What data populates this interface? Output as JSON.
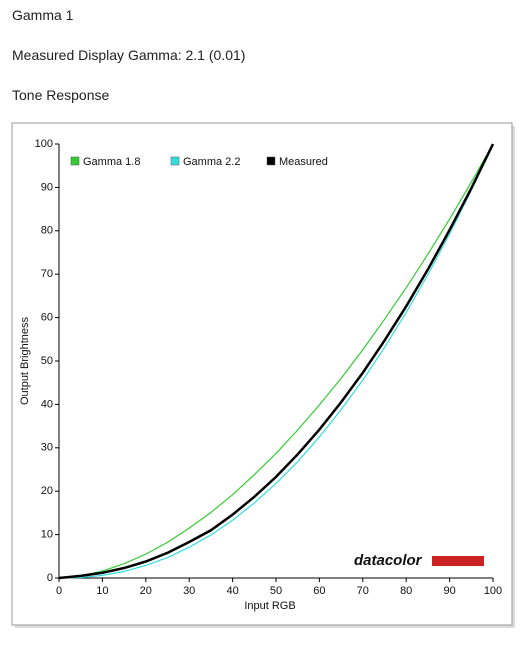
{
  "heading": "Gamma 1",
  "subheading": "Measured Display Gamma: 2.1 (0.01)",
  "section": "Tone Response",
  "logo": "datacolor",
  "chart_data": {
    "type": "line",
    "xlabel": "Input RGB",
    "ylabel": "Output Brightness",
    "x": [
      0,
      5,
      10,
      15,
      20,
      25,
      30,
      35,
      40,
      45,
      50,
      55,
      60,
      65,
      70,
      75,
      80,
      85,
      90,
      95,
      100
    ],
    "series": [
      {
        "name": "Gamma 1.8",
        "color": "#33cc33",
        "values": [
          0,
          0.5,
          1.6,
          3.3,
          5.5,
          8.2,
          11.5,
          15.1,
          19.2,
          23.8,
          28.7,
          34.1,
          39.9,
          46.0,
          52.6,
          59.6,
          66.9,
          74.6,
          82.7,
          91.2,
          100
        ]
      },
      {
        "name": "Gamma 2.2",
        "color": "#33dddd",
        "values": [
          0,
          0.1,
          0.6,
          1.5,
          2.9,
          4.7,
          7.1,
          9.9,
          13.3,
          17.3,
          21.8,
          26.8,
          32.5,
          38.8,
          45.6,
          53.1,
          61.2,
          69.9,
          79.3,
          89.3,
          100
        ]
      },
      {
        "name": "Measured",
        "color": "#000000",
        "values": [
          0,
          0.5,
          1.2,
          2.3,
          3.8,
          5.8,
          8.3,
          11.0,
          14.6,
          18.7,
          23.3,
          28.5,
          34.2,
          40.5,
          47.3,
          54.7,
          62.6,
          71.1,
          80.2,
          89.8,
          100
        ]
      }
    ],
    "xlim": [
      0,
      100
    ],
    "ylim": [
      0,
      100
    ],
    "xticks": [
      0,
      10,
      20,
      30,
      40,
      50,
      60,
      70,
      80,
      90,
      100
    ],
    "yticks": [
      0,
      10,
      20,
      30,
      40,
      50,
      60,
      70,
      80,
      90,
      100
    ],
    "grid": false,
    "legend": "top-left"
  }
}
